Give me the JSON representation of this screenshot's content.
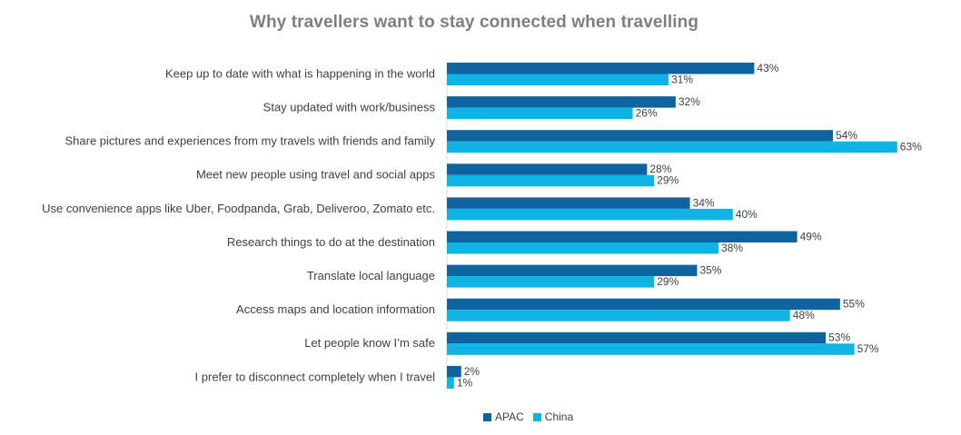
{
  "chart_data": {
    "type": "bar",
    "orientation": "horizontal",
    "title": "Why travellers want to stay connected when travelling",
    "categories": [
      "Keep up to date with what is happening in the world",
      "Stay updated with work/business",
      "Share pictures and experiences from my travels with friends and family",
      "Meet new people using travel and social apps",
      "Use convenience apps like Uber, Foodpanda, Grab, Deliveroo, Zomato etc.",
      "Research things to do at the destination",
      "Translate local language",
      "Access maps and location information",
      "Let people know I’m safe",
      "I prefer to disconnect completely when I travel"
    ],
    "series": [
      {
        "name": "APAC",
        "color": "#0f64a0",
        "values": [
          43,
          32,
          54,
          28,
          34,
          49,
          35,
          55,
          53,
          2
        ]
      },
      {
        "name": "China",
        "color": "#10b4e4",
        "values": [
          31,
          26,
          63,
          29,
          40,
          38,
          29,
          48,
          57,
          1
        ]
      }
    ],
    "value_suffix": "%",
    "xlim": [
      0,
      63
    ],
    "grid": false,
    "legend_position": "bottom-center"
  }
}
